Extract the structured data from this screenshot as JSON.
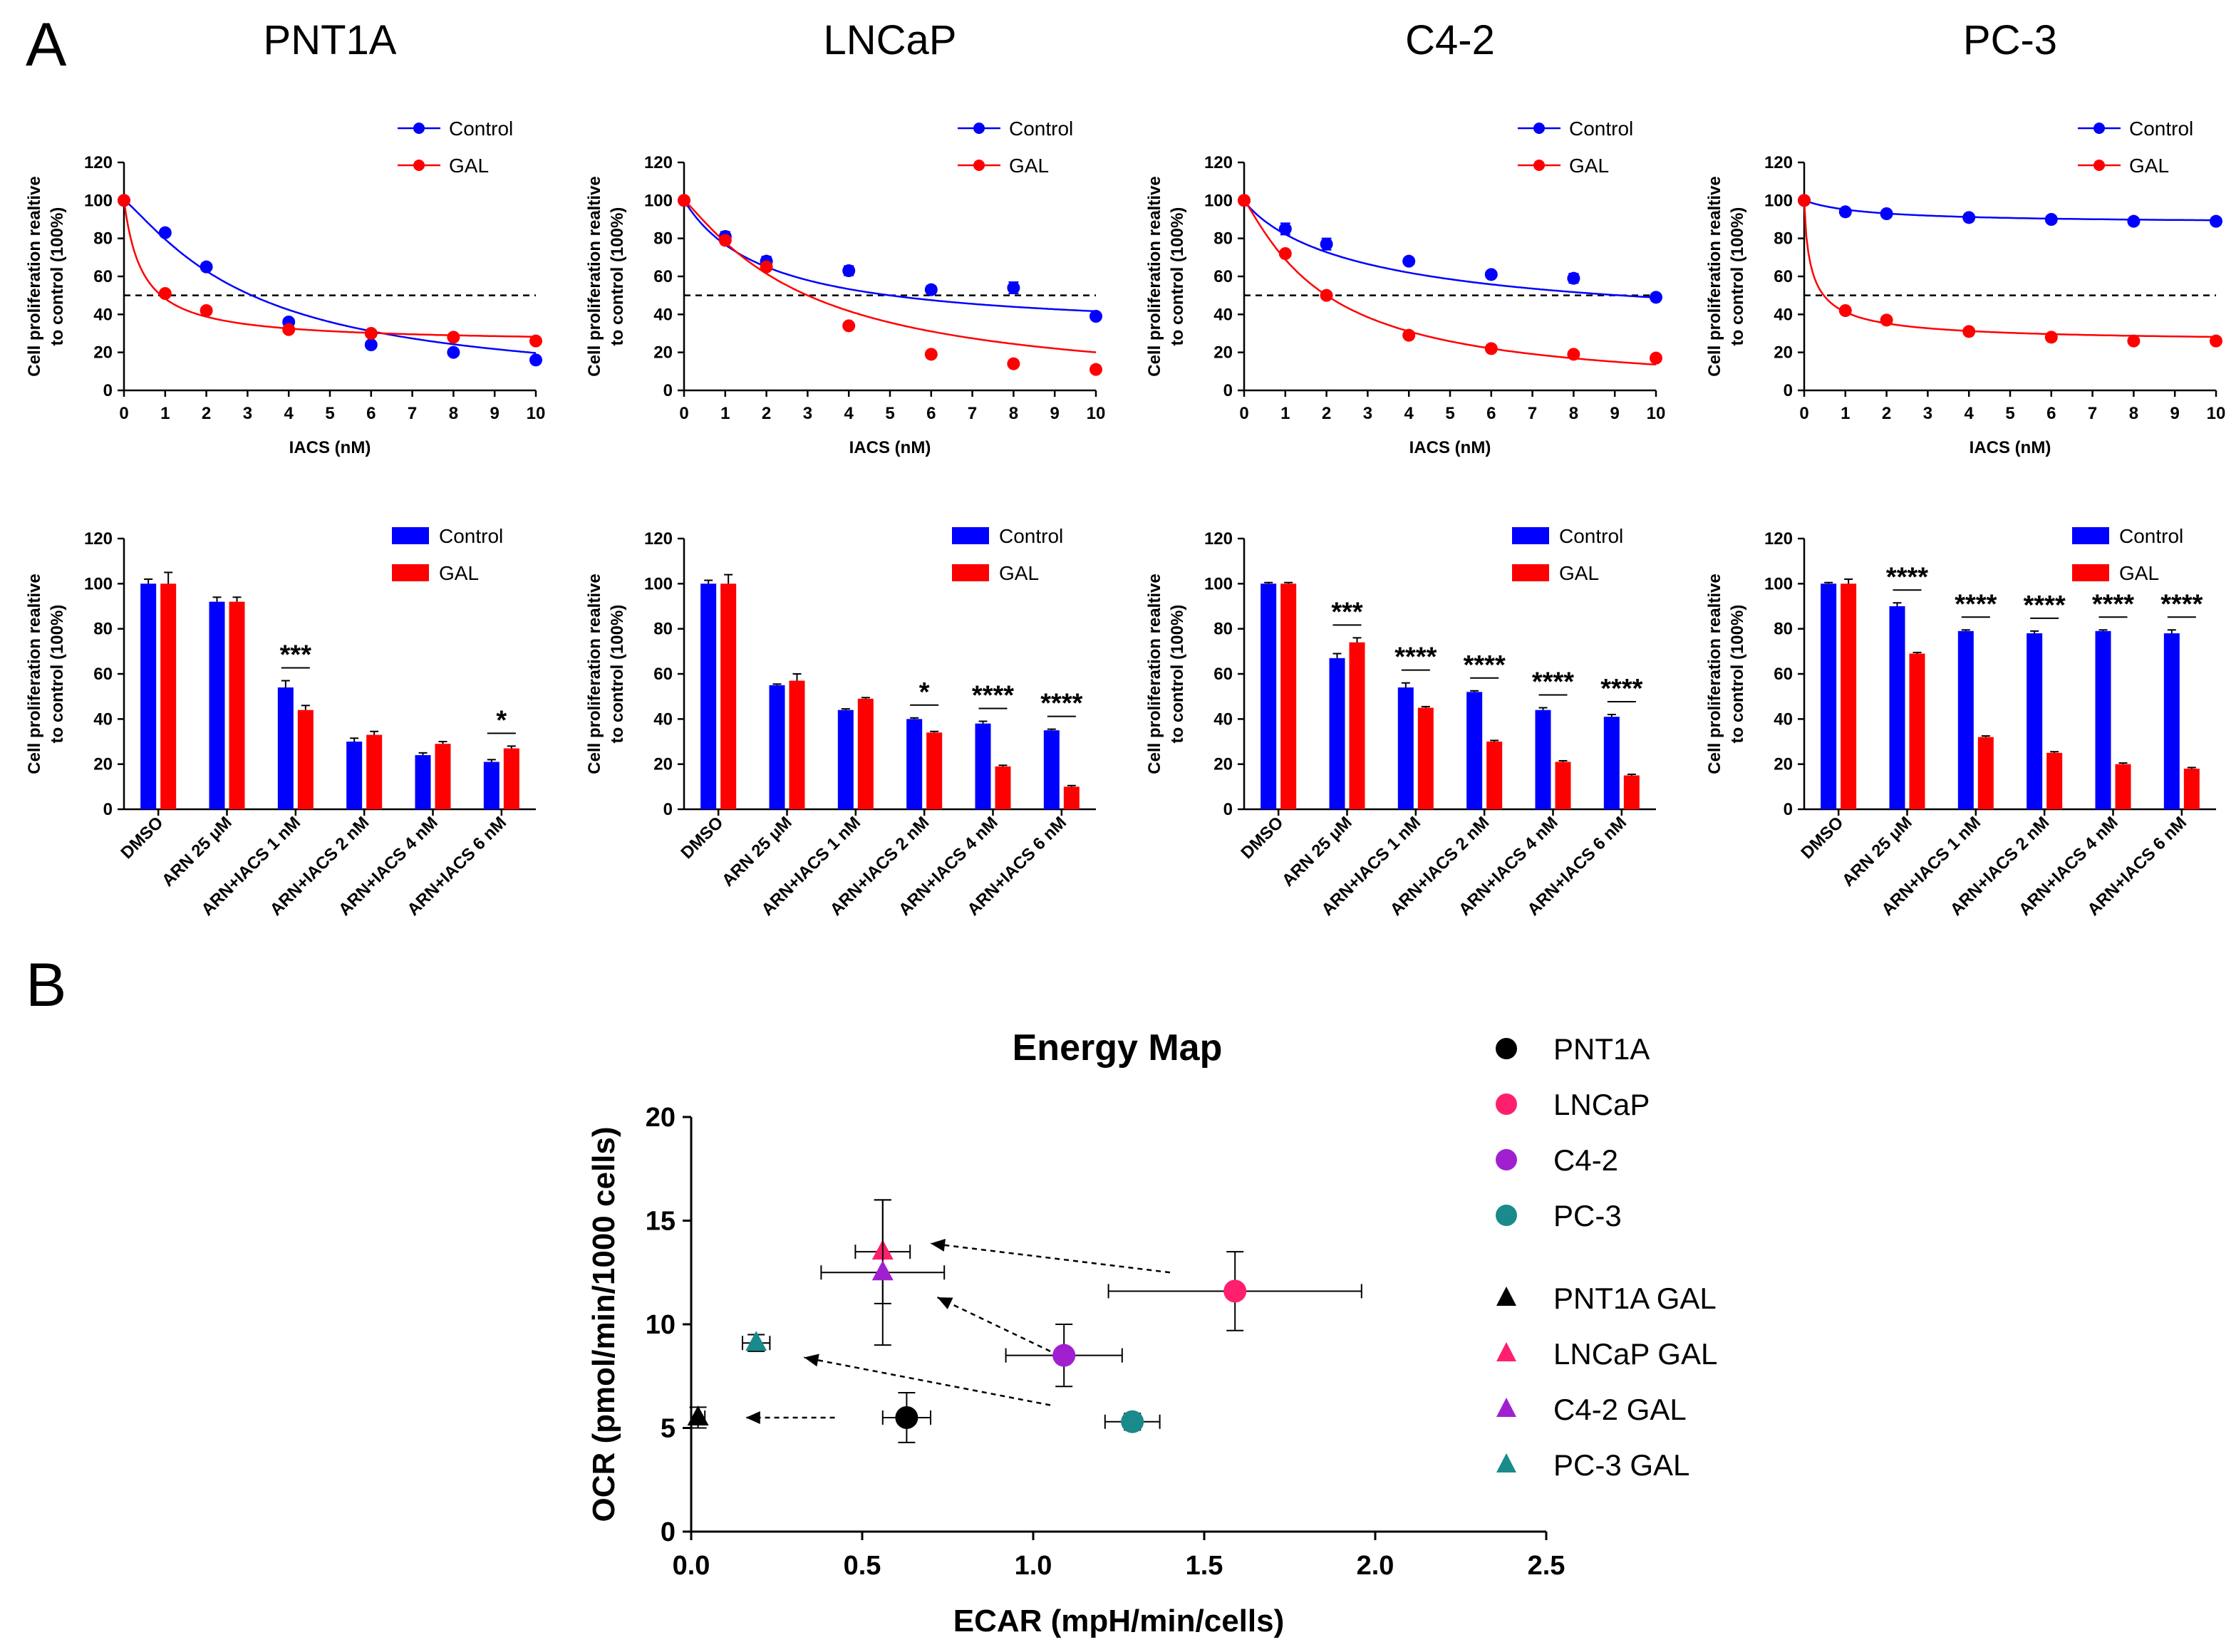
{
  "panel_labels": {
    "a": "A",
    "b": "B"
  },
  "colors": {
    "control": "#0000FF",
    "gal": "#FF0000",
    "black": "#000000"
  },
  "chart_data": [
    {
      "type": "line",
      "cell_line": "PNT1A",
      "title": "PNT1A",
      "xlabel": "IACS (nM)",
      "ylabel": [
        "Cell proliferation realtive",
        "to control (100%)"
      ],
      "xlim": [
        0,
        10
      ],
      "ylim": [
        0,
        120
      ],
      "xticks": [
        "0",
        "1",
        "2",
        "3",
        "4",
        "5",
        "6",
        "7",
        "8",
        "9",
        "10"
      ],
      "yticks": [
        "0",
        "20",
        "40",
        "60",
        "80",
        "100",
        "120"
      ],
      "reference_line": 50,
      "legend": [
        "Control",
        "GAL"
      ],
      "series": [
        {
          "name": "Control",
          "x": [
            0,
            1,
            2,
            4,
            6,
            8,
            10
          ],
          "y": [
            100,
            83,
            65,
            36,
            24,
            20,
            16
          ],
          "err": [
            0,
            1.5,
            1.5,
            1.5,
            1.5,
            1.5,
            1.5
          ],
          "fit": {
            "bottom": 0,
            "top": 100,
            "ic50": 3.1,
            "hill": 1.2
          }
        },
        {
          "name": "GAL",
          "x": [
            0,
            1,
            2,
            4,
            6,
            8,
            10
          ],
          "y": [
            100,
            51,
            42,
            32,
            30,
            28,
            26
          ],
          "err": [
            0,
            1,
            1,
            1,
            1,
            1,
            1
          ],
          "fit": {
            "bottom": 25,
            "top": 100,
            "ic50": 0.45,
            "hill": 1.0
          }
        }
      ]
    },
    {
      "type": "line",
      "cell_line": "LNCaP",
      "title": "LNCaP",
      "xlabel": "IACS (nM)",
      "ylabel": [
        "Cell proliferation realtive",
        "to control (100%)"
      ],
      "xlim": [
        0,
        10
      ],
      "ylim": [
        0,
        120
      ],
      "xticks": [
        "0",
        "1",
        "2",
        "3",
        "4",
        "5",
        "6",
        "7",
        "8",
        "9",
        "10"
      ],
      "yticks": [
        "0",
        "20",
        "40",
        "60",
        "80",
        "100",
        "120"
      ],
      "reference_line": 50,
      "legend": [
        "Control",
        "GAL"
      ],
      "series": [
        {
          "name": "Control",
          "x": [
            0,
            1,
            2,
            4,
            6,
            8,
            10
          ],
          "y": [
            100,
            81,
            68,
            63,
            53,
            54,
            39
          ],
          "err": [
            0,
            2.5,
            2.5,
            2.5,
            2,
            3,
            1.5
          ],
          "fit": {
            "bottom": 30,
            "top": 100,
            "ic50": 2.0,
            "hill": 1.0
          }
        },
        {
          "name": "GAL",
          "x": [
            0,
            1,
            2,
            4,
            6,
            8,
            10
          ],
          "y": [
            100,
            79,
            65,
            34,
            19,
            14,
            11
          ],
          "err": [
            0,
            1.5,
            1.5,
            1.5,
            1,
            1,
            1
          ],
          "fit": {
            "bottom": 0,
            "top": 100,
            "ic50": 3.0,
            "hill": 1.15
          }
        }
      ]
    },
    {
      "type": "line",
      "cell_line": "C4-2",
      "title": "C4-2",
      "xlabel": "IACS (nM)",
      "ylabel": [
        "Cell proliferation realtive",
        "to control (100%)"
      ],
      "xlim": [
        0,
        10
      ],
      "ylim": [
        0,
        120
      ],
      "xticks": [
        "0",
        "1",
        "2",
        "3",
        "4",
        "5",
        "6",
        "7",
        "8",
        "9",
        "10"
      ],
      "yticks": [
        "0",
        "20",
        "40",
        "60",
        "80",
        "100",
        "120"
      ],
      "reference_line": 50,
      "legend": [
        "Control",
        "GAL"
      ],
      "series": [
        {
          "name": "Control",
          "x": [
            0,
            1,
            2,
            4,
            6,
            8,
            10
          ],
          "y": [
            100,
            85,
            77,
            68,
            61,
            59,
            49
          ],
          "err": [
            0,
            3,
            3,
            1.5,
            1.5,
            2.5,
            1.5
          ],
          "fit": {
            "bottom": 30,
            "top": 100,
            "ic50": 3.3,
            "hill": 0.9
          }
        },
        {
          "name": "GAL",
          "x": [
            0,
            1,
            2,
            4,
            6,
            8,
            10
          ],
          "y": [
            100,
            72,
            50,
            29,
            22,
            19,
            17
          ],
          "err": [
            0,
            1.5,
            1.5,
            1.5,
            1,
            1,
            1
          ],
          "fit": {
            "bottom": 0,
            "top": 100,
            "ic50": 2.0,
            "hill": 1.15
          }
        }
      ]
    },
    {
      "type": "line",
      "cell_line": "PC-3",
      "title": "PC-3",
      "xlabel": "IACS (nM)",
      "ylabel": [
        "Cell proliferation realtive",
        "to control (100%)"
      ],
      "xlim": [
        0,
        10
      ],
      "ylim": [
        0,
        120
      ],
      "xticks": [
        "0",
        "1",
        "2",
        "3",
        "4",
        "5",
        "6",
        "7",
        "8",
        "9",
        "10"
      ],
      "yticks": [
        "0",
        "20",
        "40",
        "60",
        "80",
        "100",
        "120"
      ],
      "reference_line": 50,
      "legend": [
        "Control",
        "GAL"
      ],
      "series": [
        {
          "name": "Control",
          "x": [
            0,
            1,
            2,
            4,
            6,
            8,
            10
          ],
          "y": [
            100,
            94,
            93,
            91,
            90,
            89,
            89
          ],
          "err": [
            0,
            1,
            1,
            1,
            1,
            1,
            1
          ],
          "fit": {
            "bottom": 88,
            "top": 100,
            "ic50": 1.5,
            "hill": 1.0
          }
        },
        {
          "name": "GAL",
          "x": [
            0,
            1,
            2,
            4,
            6,
            8,
            10
          ],
          "y": [
            100,
            42,
            37,
            31,
            28,
            26,
            26
          ],
          "err": [
            0,
            1,
            1,
            1,
            1,
            1,
            1
          ],
          "fit": {
            "bottom": 25,
            "top": 100,
            "ic50": 0.2,
            "hill": 0.8
          }
        }
      ]
    },
    {
      "type": "bar",
      "cell_line": "PNT1A",
      "categories": [
        "DMSO",
        "ARN 25 μM",
        "ARN+IACS 1 nM",
        "ARN+IACS 2 nM",
        "ARN+IACS 4 nM",
        "ARN+IACS 6 nM"
      ],
      "ylabel": [
        "Cell proliferation realtive",
        "to control (100%)"
      ],
      "ylim": [
        0,
        120
      ],
      "yticks": [
        "0",
        "20",
        "40",
        "60",
        "80",
        "100",
        "120"
      ],
      "legend": [
        "Control",
        "GAL"
      ],
      "series": [
        {
          "name": "Control",
          "values": [
            100,
            92,
            54,
            30,
            24,
            21
          ],
          "err": [
            2,
            2,
            3,
            1.5,
            1,
            1
          ]
        },
        {
          "name": "GAL",
          "values": [
            100,
            92,
            44,
            33,
            29,
            27
          ],
          "err": [
            5,
            2,
            2,
            1.5,
            1,
            1
          ]
        }
      ],
      "significance": [
        "",
        "",
        "***",
        "",
        "",
        "*"
      ]
    },
    {
      "type": "bar",
      "cell_line": "LNCaP",
      "categories": [
        "DMSO",
        "ARN 25 μM",
        "ARN+IACS 1 nM",
        "ARN+IACS 2 nM",
        "ARN+IACS 4 nM",
        "ARN+IACS 6 nM"
      ],
      "ylabel": [
        "Cell proliferation realtive",
        "to control (100%)"
      ],
      "ylim": [
        0,
        120
      ],
      "yticks": [
        "0",
        "20",
        "40",
        "60",
        "80",
        "100",
        "120"
      ],
      "legend": [
        "Control",
        "GAL"
      ],
      "series": [
        {
          "name": "Control",
          "values": [
            100,
            55,
            44,
            40,
            38,
            35
          ],
          "err": [
            1.5,
            0.5,
            0.5,
            0.5,
            1,
            0.5
          ]
        },
        {
          "name": "GAL",
          "values": [
            100,
            57,
            49,
            34,
            19,
            10
          ],
          "err": [
            4,
            3,
            0.5,
            0.5,
            0.5,
            0.5
          ]
        }
      ],
      "significance": [
        "",
        "",
        "",
        "*",
        "****",
        "****"
      ]
    },
    {
      "type": "bar",
      "cell_line": "C4-2",
      "categories": [
        "DMSO",
        "ARN 25 μM",
        "ARN+IACS 1 nM",
        "ARN+IACS 2 nM",
        "ARN+IACS 4 nM",
        "ARN+IACS 6 nM"
      ],
      "ylabel": [
        "Cell proliferation realtive",
        "to control (100%)"
      ],
      "ylim": [
        0,
        120
      ],
      "yticks": [
        "0",
        "20",
        "40",
        "60",
        "80",
        "100",
        "120"
      ],
      "legend": [
        "Control",
        "GAL"
      ],
      "series": [
        {
          "name": "Control",
          "values": [
            100,
            67,
            54,
            52,
            44,
            41
          ],
          "err": [
            0.5,
            2,
            2,
            0.5,
            1,
            1
          ]
        },
        {
          "name": "GAL",
          "values": [
            100,
            74,
            45,
            30,
            21,
            15
          ],
          "err": [
            0.5,
            2,
            0.5,
            0.5,
            0.5,
            0.5
          ]
        }
      ],
      "significance": [
        "",
        "***",
        "****",
        "****",
        "****",
        "****"
      ]
    },
    {
      "type": "bar",
      "cell_line": "PC-3",
      "categories": [
        "DMSO",
        "ARN 25 μM",
        "ARN+IACS 1 nM",
        "ARN+IACS 2 nM",
        "ARN+IACS 4 nM",
        "ARN+IACS 6 nM"
      ],
      "ylabel": [
        "Cell proliferation realtive",
        "to control (100%)"
      ],
      "ylim": [
        0,
        120
      ],
      "yticks": [
        "0",
        "20",
        "40",
        "60",
        "80",
        "100",
        "120"
      ],
      "legend": [
        "Control",
        "GAL"
      ],
      "series": [
        {
          "name": "Control",
          "values": [
            100,
            90,
            79,
            78,
            79,
            78
          ],
          "err": [
            0.5,
            1.5,
            0.5,
            1,
            0.5,
            1.5
          ]
        },
        {
          "name": "GAL",
          "values": [
            100,
            69,
            32,
            25,
            20,
            18
          ],
          "err": [
            2,
            0.5,
            0.5,
            0.5,
            0.5,
            0.5
          ]
        }
      ],
      "significance": [
        "",
        "****",
        "****",
        "****",
        "****",
        "****"
      ]
    },
    {
      "type": "scatter",
      "title": "Energy Map",
      "xlabel": "ECAR (mpH/min/cells)",
      "ylabel": "OCR (pmol/min/1000 cells)",
      "xlim": [
        0,
        2.5
      ],
      "ylim": [
        0,
        20
      ],
      "xticks": [
        "0.0",
        "0.5",
        "1.0",
        "1.5",
        "2.0",
        "2.5"
      ],
      "yticks": [
        "0",
        "5",
        "10",
        "15",
        "20"
      ],
      "points": [
        {
          "name": "PNT1A",
          "marker": "circle",
          "color": "#000000",
          "x": 0.63,
          "y": 5.5,
          "xerr": 0.07,
          "yerr": 1.2
        },
        {
          "name": "LNCaP",
          "marker": "circle",
          "color": "#FF1F6E",
          "x": 1.59,
          "y": 11.6,
          "xerr": 0.37,
          "yerr": 1.9
        },
        {
          "name": "C4-2",
          "marker": "circle",
          "color": "#A020D0",
          "x": 1.09,
          "y": 8.5,
          "xerr": 0.17,
          "yerr": 1.5
        },
        {
          "name": "PC-3",
          "marker": "circle",
          "color": "#1A8A8A",
          "x": 1.29,
          "y": 5.3,
          "xerr": 0.08,
          "yerr": 0.4
        },
        {
          "name": "PNT1A GAL",
          "marker": "triangle",
          "color": "#000000",
          "x": 0.02,
          "y": 5.5,
          "xerr": 0.02,
          "yerr": 0.5
        },
        {
          "name": "LNCaP GAL",
          "marker": "triangle",
          "color": "#FF1F6E",
          "x": 0.56,
          "y": 13.5,
          "xerr": 0.08,
          "yerr": 2.5
        },
        {
          "name": "C4-2 GAL",
          "marker": "triangle",
          "color": "#A020D0",
          "x": 0.56,
          "y": 12.5,
          "xerr": 0.18,
          "yerr": 3.5
        },
        {
          "name": "PC-3 GAL",
          "marker": "triangle",
          "color": "#1A8A8A",
          "x": 0.19,
          "y": 9.1,
          "xerr": 0.04,
          "yerr": 0.4
        }
      ],
      "arrows": [
        {
          "from": [
            0.42,
            5.5
          ],
          "to": [
            0.16,
            5.5
          ]
        },
        {
          "from": [
            1.05,
            8.7
          ],
          "to": [
            0.72,
            11.3
          ]
        },
        {
          "from": [
            1.4,
            12.5
          ],
          "to": [
            0.7,
            13.9
          ]
        },
        {
          "from": [
            1.05,
            6.1
          ],
          "to": [
            0.33,
            8.4
          ]
        }
      ]
    }
  ]
}
